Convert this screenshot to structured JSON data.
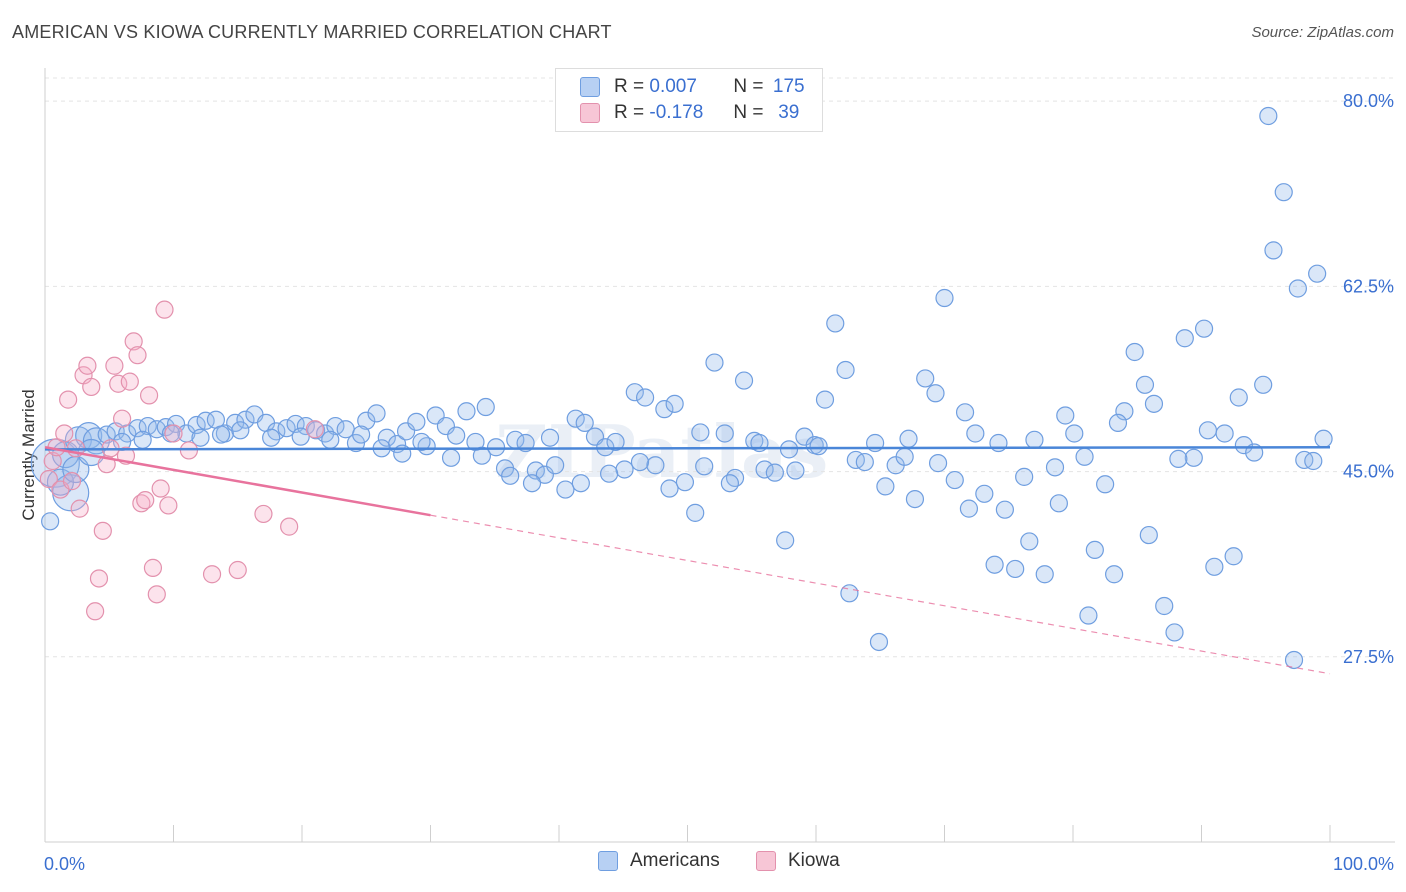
{
  "header": {
    "title": "AMERICAN VS KIOWA CURRENTLY MARRIED CORRELATION CHART",
    "source": "Source: ZipAtlas.com"
  },
  "legend_top": {
    "rows": [
      {
        "r_label": "R =",
        "r_value": "0.007",
        "n_label": "N =",
        "n_value": "175"
      },
      {
        "r_label": "R =",
        "r_value": "-0.178",
        "n_label": "N =",
        "n_value": "39"
      }
    ]
  },
  "colors": {
    "americans": "#4a86d8",
    "kiowa": "#e8739d",
    "axis_label": "#3a6fd0"
  },
  "chart_data": {
    "type": "scatter",
    "title": "AMERICAN VS KIOWA CURRENTLY MARRIED CORRELATION CHART",
    "xlabel": "",
    "ylabel": "Currently Married",
    "x_tick_labels": [
      "0.0%",
      "100.0%"
    ],
    "y_tick_labels": [
      "27.5%",
      "45.0%",
      "62.5%",
      "80.0%"
    ],
    "y_ticks": [
      27.5,
      45.0,
      62.5,
      80.0
    ],
    "xlim": [
      0,
      100
    ],
    "ylim": [
      10,
      82
    ],
    "grid": true,
    "legend_position": "bottom",
    "watermark": "ZIPatlas",
    "series": [
      {
        "name": "Americans",
        "color": "#4a86d8",
        "trend": {
          "x": [
            0,
            100
          ],
          "y": [
            47.1,
            47.3
          ],
          "dashed_from": null
        },
        "points": [
          [
            0.4,
            40.3,
            1
          ],
          [
            0.8,
            45.8,
            4
          ],
          [
            1.6,
            46.6,
            2
          ],
          [
            2.0,
            43.0,
            3
          ],
          [
            2.6,
            48.0,
            2
          ],
          [
            3.4,
            48.4,
            2
          ],
          [
            4.0,
            47.9,
            2
          ],
          [
            4.8,
            48.5,
            1
          ],
          [
            5.5,
            48.8,
            1
          ],
          [
            6.4,
            48.6,
            1
          ],
          [
            7.2,
            49.1,
            1
          ],
          [
            8.0,
            49.3,
            1
          ],
          [
            8.7,
            49.0,
            1
          ],
          [
            9.4,
            49.2,
            1
          ],
          [
            10.2,
            49.5,
            1
          ],
          [
            11.0,
            48.6,
            1
          ],
          [
            11.8,
            49.4,
            1
          ],
          [
            12.5,
            49.8,
            1
          ],
          [
            13.3,
            49.9,
            1
          ],
          [
            14.0,
            48.6,
            1
          ],
          [
            14.8,
            49.6,
            1
          ],
          [
            15.6,
            49.9,
            1
          ],
          [
            16.3,
            50.4,
            1
          ],
          [
            17.2,
            49.6,
            1
          ],
          [
            18.0,
            48.8,
            1
          ],
          [
            18.8,
            49.1,
            1
          ],
          [
            19.5,
            49.5,
            1
          ],
          [
            20.3,
            49.3,
            1
          ],
          [
            21.1,
            48.9,
            1
          ],
          [
            21.8,
            48.6,
            1
          ],
          [
            22.6,
            49.3,
            1
          ],
          [
            23.4,
            49.0,
            1
          ],
          [
            24.2,
            47.7,
            1
          ],
          [
            25.0,
            49.8,
            1
          ],
          [
            25.8,
            50.5,
            1
          ],
          [
            26.6,
            48.2,
            1
          ],
          [
            27.4,
            47.6,
            1
          ],
          [
            28.1,
            48.8,
            1
          ],
          [
            28.9,
            49.7,
            1
          ],
          [
            29.7,
            47.4,
            1
          ],
          [
            30.4,
            50.3,
            1
          ],
          [
            31.2,
            49.3,
            1
          ],
          [
            32.0,
            48.4,
            1
          ],
          [
            32.8,
            50.7,
            1
          ],
          [
            33.5,
            47.8,
            1
          ],
          [
            34.3,
            51.1,
            1
          ],
          [
            35.1,
            47.3,
            1
          ],
          [
            35.8,
            45.3,
            1
          ],
          [
            36.6,
            48.0,
            1
          ],
          [
            37.4,
            47.7,
            1
          ],
          [
            38.2,
            45.1,
            1
          ],
          [
            38.9,
            44.7,
            1
          ],
          [
            39.7,
            45.6,
            1
          ],
          [
            40.5,
            43.3,
            1
          ],
          [
            41.3,
            50.0,
            1
          ],
          [
            42.0,
            49.6,
            1
          ],
          [
            42.8,
            48.3,
            1
          ],
          [
            43.6,
            47.3,
            1
          ],
          [
            44.4,
            47.8,
            1
          ],
          [
            45.1,
            45.2,
            1
          ],
          [
            45.9,
            52.5,
            1
          ],
          [
            46.7,
            52.0,
            1
          ],
          [
            47.5,
            45.6,
            1
          ],
          [
            48.2,
            50.9,
            1
          ],
          [
            49.0,
            51.4,
            1
          ],
          [
            49.8,
            44.0,
            1
          ],
          [
            50.6,
            41.1,
            1
          ],
          [
            51.3,
            45.5,
            1
          ],
          [
            52.1,
            55.3,
            1
          ],
          [
            52.9,
            48.6,
            1
          ],
          [
            53.7,
            44.4,
            1
          ],
          [
            54.4,
            53.6,
            1
          ],
          [
            55.2,
            47.9,
            1
          ],
          [
            56.0,
            45.2,
            1
          ],
          [
            56.8,
            44.9,
            1
          ],
          [
            57.6,
            38.5,
            1
          ],
          [
            58.4,
            45.1,
            1
          ],
          [
            59.1,
            48.3,
            1
          ],
          [
            59.9,
            47.5,
            1
          ],
          [
            60.7,
            51.8,
            1
          ],
          [
            61.5,
            59.0,
            1
          ],
          [
            62.3,
            54.6,
            1
          ],
          [
            63.1,
            46.1,
            1
          ],
          [
            63.8,
            45.9,
            1
          ],
          [
            64.6,
            47.7,
            1
          ],
          [
            65.4,
            43.6,
            1
          ],
          [
            66.2,
            45.6,
            1
          ],
          [
            66.9,
            46.4,
            1
          ],
          [
            67.7,
            42.4,
            1
          ],
          [
            68.5,
            53.8,
            1
          ],
          [
            69.3,
            52.4,
            1
          ],
          [
            70.0,
            61.4,
            1
          ],
          [
            70.8,
            44.2,
            1
          ],
          [
            71.6,
            50.6,
            1
          ],
          [
            72.4,
            48.6,
            1
          ],
          [
            73.1,
            42.9,
            1
          ],
          [
            73.9,
            36.2,
            1
          ],
          [
            74.7,
            41.4,
            1
          ],
          [
            75.5,
            35.8,
            1
          ],
          [
            76.2,
            44.5,
            1
          ],
          [
            77.0,
            48.0,
            1
          ],
          [
            77.8,
            35.3,
            1
          ],
          [
            78.6,
            45.4,
            1
          ],
          [
            79.4,
            50.3,
            1
          ],
          [
            80.1,
            48.6,
            1
          ],
          [
            80.9,
            46.4,
            1
          ],
          [
            81.7,
            37.6,
            1
          ],
          [
            82.5,
            43.8,
            1
          ],
          [
            83.2,
            35.3,
            1
          ],
          [
            84.0,
            50.7,
            1
          ],
          [
            84.8,
            56.3,
            1
          ],
          [
            85.6,
            53.2,
            1
          ],
          [
            86.3,
            51.4,
            1
          ],
          [
            87.1,
            32.3,
            1
          ],
          [
            87.9,
            29.8,
            1
          ],
          [
            88.7,
            57.6,
            1
          ],
          [
            89.4,
            46.3,
            1
          ],
          [
            90.2,
            58.5,
            1
          ],
          [
            91.0,
            36.0,
            1
          ],
          [
            91.8,
            48.6,
            1
          ],
          [
            92.5,
            37.0,
            1
          ],
          [
            93.3,
            47.5,
            1
          ],
          [
            94.1,
            46.8,
            1
          ],
          [
            94.8,
            53.2,
            1
          ],
          [
            95.6,
            65.9,
            1
          ],
          [
            96.4,
            71.4,
            1
          ],
          [
            97.2,
            27.2,
            1
          ],
          [
            98.0,
            46.1,
            1
          ],
          [
            98.7,
            46.0,
            1
          ],
          [
            99.5,
            48.1,
            1
          ],
          [
            1.2,
            44.0,
            2
          ],
          [
            2.4,
            45.2,
            2
          ],
          [
            3.6,
            46.8,
            2
          ],
          [
            6.0,
            47.8,
            1
          ],
          [
            7.6,
            48.0,
            1
          ],
          [
            9.8,
            48.6,
            1
          ],
          [
            12.1,
            48.2,
            1
          ],
          [
            13.7,
            48.5,
            1
          ],
          [
            15.2,
            48.9,
            1
          ],
          [
            17.6,
            48.2,
            1
          ],
          [
            19.9,
            48.3,
            1
          ],
          [
            22.2,
            48.0,
            1
          ],
          [
            24.6,
            48.5,
            1
          ],
          [
            26.2,
            47.2,
            1
          ],
          [
            27.8,
            46.7,
            1
          ],
          [
            29.3,
            47.8,
            1
          ],
          [
            31.6,
            46.3,
            1
          ],
          [
            34.0,
            46.5,
            1
          ],
          [
            36.2,
            44.6,
            1
          ],
          [
            37.9,
            43.9,
            1
          ],
          [
            39.3,
            48.2,
            1
          ],
          [
            41.7,
            43.9,
            1
          ],
          [
            43.9,
            44.8,
            1
          ],
          [
            46.3,
            45.9,
            1
          ],
          [
            48.6,
            43.4,
            1
          ],
          [
            51.0,
            48.7,
            1
          ],
          [
            53.3,
            43.9,
            1
          ],
          [
            55.6,
            47.7,
            1
          ],
          [
            57.9,
            47.1,
            1
          ],
          [
            60.2,
            47.4,
            1
          ],
          [
            62.6,
            33.5,
            1
          ],
          [
            64.9,
            28.9,
            1
          ],
          [
            67.2,
            48.1,
            1
          ],
          [
            69.5,
            45.8,
            1
          ],
          [
            71.9,
            41.5,
            1
          ],
          [
            74.2,
            47.7,
            1
          ],
          [
            76.6,
            38.4,
            1
          ],
          [
            78.9,
            42.0,
            1
          ],
          [
            81.2,
            31.4,
            1
          ],
          [
            83.5,
            49.6,
            1
          ],
          [
            85.9,
            39.0,
            1
          ],
          [
            88.2,
            46.2,
            1
          ],
          [
            90.5,
            48.9,
            1
          ],
          [
            92.9,
            52.0,
            1
          ],
          [
            95.2,
            78.6,
            1
          ],
          [
            97.5,
            62.3,
            1
          ],
          [
            99.0,
            63.7,
            1
          ]
        ]
      },
      {
        "name": "Kiowa",
        "color": "#e8739d",
        "trend": {
          "x": [
            0,
            100
          ],
          "y": [
            47.3,
            25.9
          ],
          "dashed_from": 30
        },
        "points": [
          [
            0.3,
            44.3,
            1
          ],
          [
            0.6,
            46.0,
            1
          ],
          [
            0.9,
            47.3,
            1
          ],
          [
            1.2,
            43.3,
            1
          ],
          [
            1.5,
            48.6,
            1
          ],
          [
            1.8,
            51.8,
            1
          ],
          [
            2.1,
            44.1,
            1
          ],
          [
            2.4,
            47.2,
            1
          ],
          [
            2.7,
            41.5,
            1
          ],
          [
            3.0,
            54.1,
            1
          ],
          [
            3.3,
            55.0,
            1
          ],
          [
            3.6,
            53.0,
            1
          ],
          [
            3.9,
            31.8,
            1
          ],
          [
            4.2,
            34.9,
            1
          ],
          [
            4.5,
            39.4,
            1
          ],
          [
            4.8,
            45.7,
            1
          ],
          [
            5.1,
            47.2,
            1
          ],
          [
            5.4,
            55.0,
            1
          ],
          [
            5.7,
            53.3,
            1
          ],
          [
            6.0,
            50.0,
            1
          ],
          [
            6.3,
            46.5,
            1
          ],
          [
            6.6,
            53.5,
            1
          ],
          [
            6.9,
            57.3,
            1
          ],
          [
            7.2,
            56.0,
            1
          ],
          [
            7.5,
            42.0,
            1
          ],
          [
            7.8,
            42.3,
            1
          ],
          [
            8.1,
            52.2,
            1
          ],
          [
            8.4,
            35.9,
            1
          ],
          [
            8.7,
            33.4,
            1
          ],
          [
            9.0,
            43.4,
            1
          ],
          [
            9.3,
            60.3,
            1
          ],
          [
            9.6,
            41.8,
            1
          ],
          [
            10.0,
            48.6,
            1
          ],
          [
            11.2,
            47.0,
            1
          ],
          [
            13.0,
            35.3,
            1
          ],
          [
            15.0,
            35.7,
            1
          ],
          [
            17.0,
            41.0,
            1
          ],
          [
            19.0,
            39.8,
            1
          ],
          [
            21.0,
            49.0,
            1
          ]
        ]
      }
    ]
  },
  "legend_bottom": {
    "items": [
      "Americans",
      "Kiowa"
    ]
  }
}
